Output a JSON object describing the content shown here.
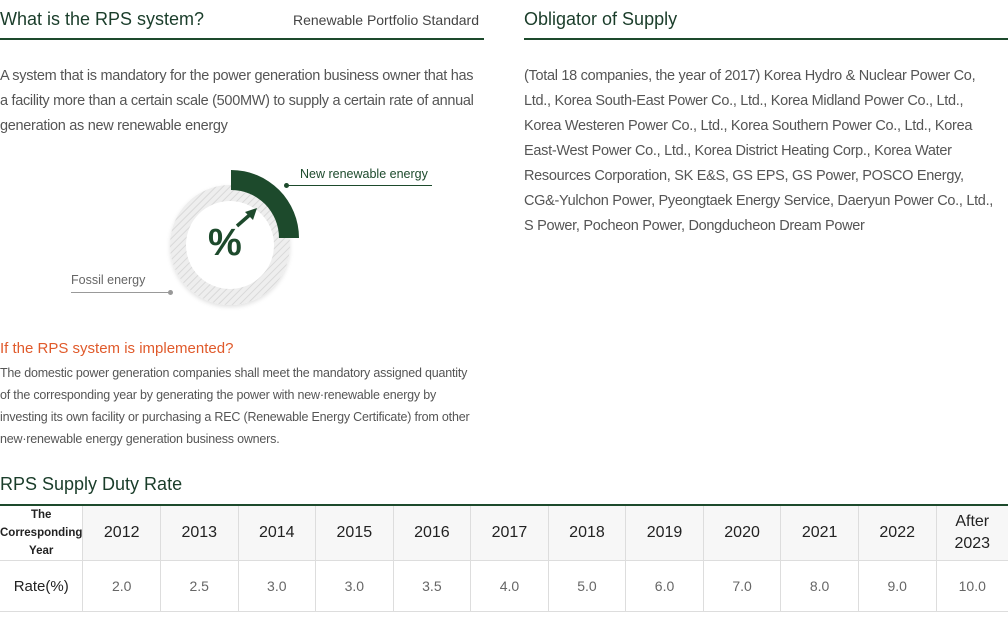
{
  "rps": {
    "title": "What is the RPS system?",
    "subtitle": "Renewable Portfolio Standard",
    "description": "A system that is mandatory for the power generation business owner that has a facility more than a certain scale (500MW) to supply a certain rate of annual generation as new renewable energy"
  },
  "obligator": {
    "title": "Obligator of Supply",
    "description": "(Total 18 companies, the year of 2017) Korea Hydro & Nuclear Power Co, Ltd., Korea South-East Power Co., Ltd., Korea Midland Power Co., Ltd., Korea Westeren Power Co., Ltd., Korea Southern Power Co., Ltd., Korea East-West Power Co., Ltd., Korea District Heating Corp., Korea Water Resources Corporation, SK E&S, GS EPS, GS Power, POSCO Energy, CG&-Yulchon Power, Pyeongtaek Energy Service, Daeryun Power Co., Ltd., S Power, Pocheon Power, Dongducheon Dream Power"
  },
  "donut": {
    "center_symbol": "%",
    "label_renewable": "New renewable energy",
    "label_fossil": "Fossil energy",
    "renewable_color": "#1d4a2c",
    "fossil_color": "#e6e6e6"
  },
  "implemented": {
    "title": "If the RPS system is implemented?",
    "text": "The domestic power generation companies shall meet the mandatory assigned quantity of the corresponding year by generating the power with new·renewable energy by investing its own facility or purchasing a REC (Renewable Energy Certificate) from other new·renewable energy generation business owners."
  },
  "rate_table": {
    "title": "RPS Supply Duty Rate",
    "header_label": "The Corresponding Year",
    "rate_label": "Rate(%)",
    "years": [
      "2012",
      "2013",
      "2014",
      "2015",
      "2016",
      "2017",
      "2018",
      "2019",
      "2020",
      "2021",
      "2022",
      "After 2023"
    ],
    "rates": [
      "2.0",
      "2.5",
      "3.0",
      "3.0",
      "3.5",
      "4.0",
      "5.0",
      "6.0",
      "7.0",
      "8.0",
      "9.0",
      "10.0"
    ]
  },
  "colors": {
    "accent_green": "#1d4a2c",
    "accent_orange": "#e05a2b"
  }
}
